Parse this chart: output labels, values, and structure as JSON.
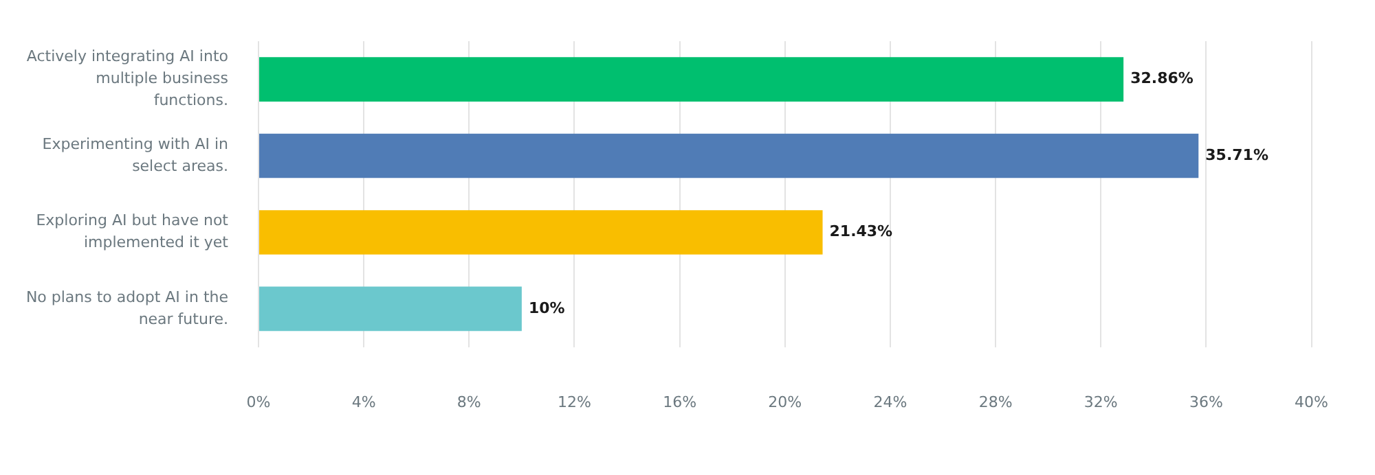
{
  "chart_data": {
    "type": "bar",
    "orientation": "horizontal",
    "categories": [
      "Actively integrating AI into multiple business functions.",
      "Experimenting with AI in select areas.",
      "Exploring AI but have not implemented it yet",
      "No plans to adopt AI in the near future."
    ],
    "values": [
      32.86,
      35.71,
      21.43,
      10
    ],
    "colors": [
      "#00bf6f",
      "#507cb6",
      "#f9be00",
      "#6bc8cd"
    ],
    "value_labels": [
      "32.86%",
      "35.71%",
      "21.43%",
      "10%"
    ],
    "xlim": [
      0,
      40
    ],
    "xticks": [
      {
        "value": 0,
        "label": "0%"
      },
      {
        "value": 4,
        "label": "4%"
      },
      {
        "value": 8,
        "label": "8%"
      },
      {
        "value": 12,
        "label": "12%"
      },
      {
        "value": 16,
        "label": "16%"
      },
      {
        "value": 20,
        "label": "20%"
      },
      {
        "value": 24,
        "label": "24%"
      },
      {
        "value": 28,
        "label": "28%"
      },
      {
        "value": 32,
        "label": "32%"
      },
      {
        "value": 36,
        "label": "36%"
      },
      {
        "value": 40,
        "label": "40%"
      }
    ],
    "grid": "x",
    "legend": false
  }
}
